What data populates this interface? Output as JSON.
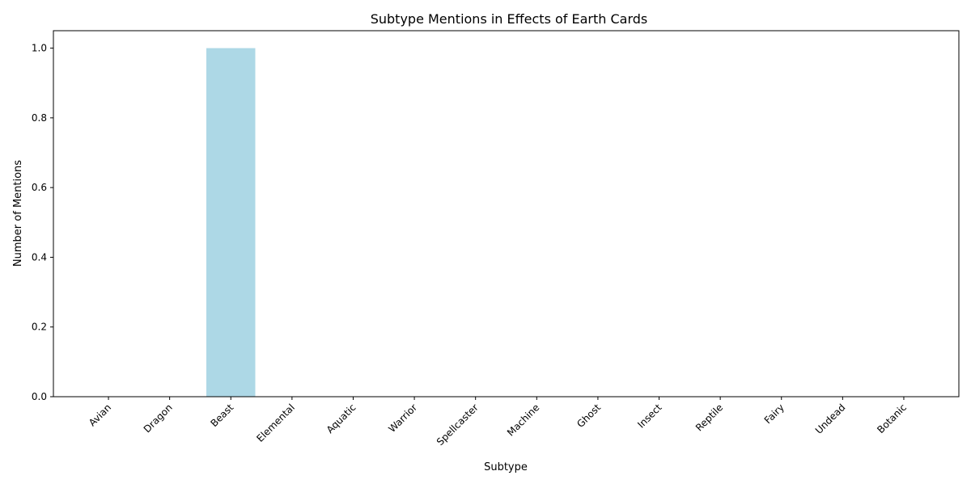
{
  "chart_data": {
    "type": "bar",
    "title": "Subtype Mentions in Effects of Earth Cards",
    "xlabel": "Subtype",
    "ylabel": "Number of Mentions",
    "categories": [
      "Avian",
      "Dragon",
      "Beast",
      "Elemental",
      "Aquatic",
      "Warrior",
      "Spellcaster",
      "Machine",
      "Ghost",
      "Insect",
      "Reptile",
      "Fairy",
      "Undead",
      "Botanic"
    ],
    "values": [
      0,
      0,
      1,
      0,
      0,
      0,
      0,
      0,
      0,
      0,
      0,
      0,
      0,
      0
    ],
    "ylim": [
      0,
      1.05
    ],
    "yticks": [
      "0.0",
      "0.2",
      "0.4",
      "0.6",
      "0.8",
      "1.0"
    ],
    "grid": false,
    "bar_color": "#add8e6"
  }
}
